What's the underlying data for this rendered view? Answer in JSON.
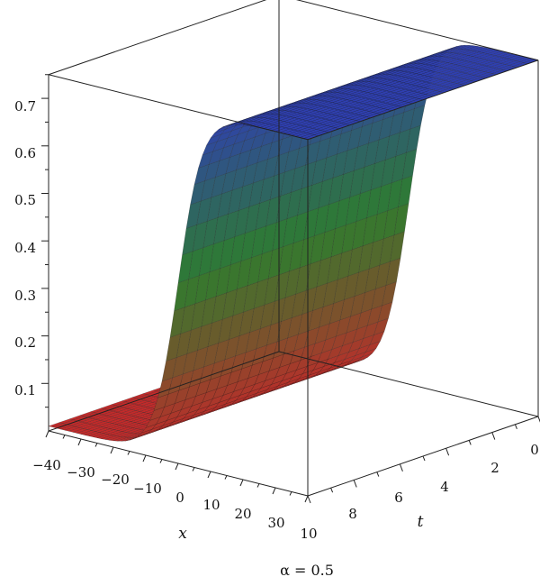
{
  "chart_data": {
    "type": "surface3d",
    "caption": "α = 0.5",
    "xlabel": "x",
    "tlabel": "t",
    "x_ticks": [
      "−40",
      "−30",
      "−20",
      "−10",
      "0",
      "10",
      "20",
      "30"
    ],
    "t_ticks": [
      "0",
      "2",
      "4",
      "6",
      "8",
      "10"
    ],
    "z_ticks": [
      "0.1",
      "0.2",
      "0.3",
      "0.4",
      "0.5",
      "0.6",
      "0.7"
    ],
    "xlim": [
      -40,
      40
    ],
    "tlim": [
      0,
      10
    ],
    "zlim": [
      0,
      0.75
    ],
    "surface": {
      "form": "kink (tanh-shaped wave front)",
      "z_min": 0.01,
      "z_max": 0.75,
      "front_x": 0,
      "colormap": [
        "#c22a2a",
        "#2e7d2e",
        "#2f3fb0"
      ]
    },
    "box": "true",
    "grid": "false"
  }
}
